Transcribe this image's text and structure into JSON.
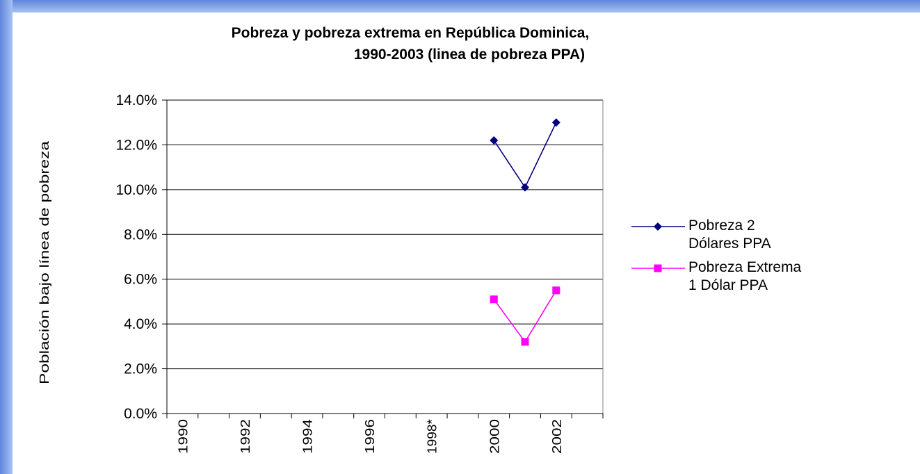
{
  "chart_data": {
    "type": "line",
    "title": [
      "Pobreza y pobreza extrema en República Dominica,",
      "1990-2003 (linea de pobreza PPA)"
    ],
    "y_label": "Población bajo línea de pobreza",
    "categories": [
      "1990",
      null,
      "1992",
      null,
      "1994",
      null,
      "1996",
      null,
      "1998*",
      null,
      "2000",
      null,
      "2002",
      null
    ],
    "series": [
      {
        "name": "Pobreza 2 Dólares PPA",
        "color": "#000080",
        "marker": "diamond",
        "values": [
          null,
          null,
          null,
          null,
          null,
          null,
          null,
          null,
          null,
          null,
          12.2,
          10.1,
          13.0,
          null
        ]
      },
      {
        "name": "Pobreza Extrema 1 Dólar PPA",
        "color": "#ff00ff",
        "marker": "square",
        "values": [
          null,
          null,
          null,
          null,
          null,
          null,
          null,
          null,
          null,
          null,
          5.1,
          3.2,
          5.5,
          null
        ]
      }
    ],
    "ylim": [
      0,
      14
    ],
    "yticks": [
      {
        "value": 0,
        "label": "0.0%"
      },
      {
        "value": 2,
        "label": "2.0%"
      },
      {
        "value": 4,
        "label": "4.0%"
      },
      {
        "value": 6,
        "label": "6.0%"
      },
      {
        "value": 8,
        "label": "8.0%"
      },
      {
        "value": 10,
        "label": "10.0%"
      },
      {
        "value": 12,
        "label": "12.0%"
      },
      {
        "value": 14,
        "label": "14.0%"
      }
    ],
    "grid": true,
    "legend": "right"
  }
}
